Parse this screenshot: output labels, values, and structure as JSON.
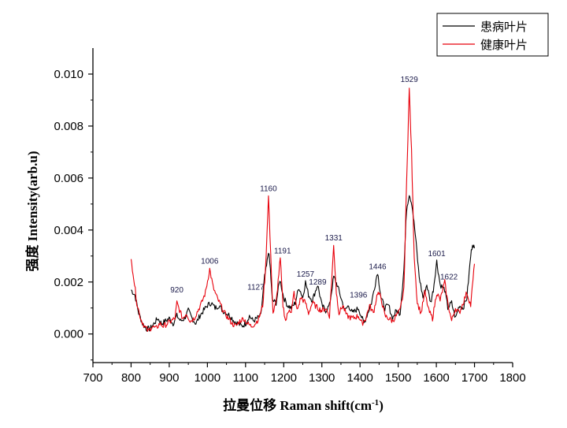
{
  "chart_data": {
    "type": "line",
    "xlabel": "拉曼位移 Raman shift(cm-1)",
    "xlabel_main": "拉曼位移 Raman shift(cm",
    "xlabel_sup": "-1",
    "xlabel_end": ")",
    "ylabel": "强度 Intensity(arb.u)",
    "xlim": [
      700,
      1800
    ],
    "ylim": [
      -0.0011,
      0.011
    ],
    "xticks": [
      "700",
      "800",
      "900",
      "1000",
      "1100",
      "1200",
      "1300",
      "1400",
      "1500",
      "1600",
      "1700",
      "1800"
    ],
    "yticks": [
      "0.000",
      "0.002",
      "0.004",
      "0.006",
      "0.008",
      "0.010"
    ],
    "grid": false,
    "legend_position": "top-right",
    "series": [
      {
        "name": "患病叶片",
        "color": "#000000",
        "points": [
          [
            800,
            0.0017
          ],
          [
            810,
            0.0015
          ],
          [
            820,
            0.0008
          ],
          [
            830,
            0.0004
          ],
          [
            840,
            0.0002
          ],
          [
            850,
            0.0002
          ],
          [
            860,
            0.0004
          ],
          [
            870,
            0.0006
          ],
          [
            880,
            0.0004
          ],
          [
            890,
            0.0005
          ],
          [
            900,
            0.0006
          ],
          [
            910,
            0.0004
          ],
          [
            920,
            0.0007
          ],
          [
            930,
            0.0005
          ],
          [
            940,
            0.0006
          ],
          [
            950,
            0.0009
          ],
          [
            960,
            0.0006
          ],
          [
            970,
            0.0004
          ],
          [
            980,
            0.0007
          ],
          [
            990,
            0.0009
          ],
          [
            1000,
            0.0011
          ],
          [
            1010,
            0.0012
          ],
          [
            1020,
            0.001
          ],
          [
            1030,
            0.0011
          ],
          [
            1040,
            0.0009
          ],
          [
            1050,
            0.0008
          ],
          [
            1060,
            0.0007
          ],
          [
            1070,
            0.0005
          ],
          [
            1080,
            0.0004
          ],
          [
            1090,
            0.0003
          ],
          [
            1100,
            0.0004
          ],
          [
            1110,
            0.0007
          ],
          [
            1120,
            0.0005
          ],
          [
            1130,
            0.0006
          ],
          [
            1140,
            0.0007
          ],
          [
            1150,
            0.0022
          ],
          [
            1155,
            0.0026
          ],
          [
            1160,
            0.0032
          ],
          [
            1165,
            0.0025
          ],
          [
            1170,
            0.0013
          ],
          [
            1180,
            0.0012
          ],
          [
            1190,
            0.0021
          ],
          [
            1200,
            0.0014
          ],
          [
            1210,
            0.0011
          ],
          [
            1220,
            0.001
          ],
          [
            1230,
            0.0012
          ],
          [
            1240,
            0.0018
          ],
          [
            1250,
            0.0014
          ],
          [
            1257,
            0.002
          ],
          [
            1265,
            0.0015
          ],
          [
            1275,
            0.0013
          ],
          [
            1289,
            0.0019
          ],
          [
            1300,
            0.0011
          ],
          [
            1310,
            0.0009
          ],
          [
            1320,
            0.0011
          ],
          [
            1331,
            0.0022
          ],
          [
            1340,
            0.0019
          ],
          [
            1350,
            0.0014
          ],
          [
            1360,
            0.0009
          ],
          [
            1370,
            0.0011
          ],
          [
            1380,
            0.0008
          ],
          [
            1396,
            0.001
          ],
          [
            1410,
            0.0004
          ],
          [
            1420,
            0.0008
          ],
          [
            1430,
            0.0012
          ],
          [
            1446,
            0.0024
          ],
          [
            1455,
            0.0014
          ],
          [
            1465,
            0.001
          ],
          [
            1475,
            0.0011
          ],
          [
            1485,
            0.0006
          ],
          [
            1495,
            0.0009
          ],
          [
            1505,
            0.0008
          ],
          [
            1515,
            0.0025
          ],
          [
            1522,
            0.0048
          ],
          [
            1529,
            0.0054
          ],
          [
            1536,
            0.005
          ],
          [
            1545,
            0.0038
          ],
          [
            1555,
            0.0022
          ],
          [
            1565,
            0.0014
          ],
          [
            1575,
            0.0019
          ],
          [
            1585,
            0.0012
          ],
          [
            1592,
            0.0017
          ],
          [
            1601,
            0.0028
          ],
          [
            1610,
            0.0019
          ],
          [
            1622,
            0.0017
          ],
          [
            1630,
            0.001
          ],
          [
            1640,
            0.0012
          ],
          [
            1650,
            0.0006
          ],
          [
            1660,
            0.0011
          ],
          [
            1670,
            0.001
          ],
          [
            1680,
            0.0014
          ],
          [
            1690,
            0.003
          ],
          [
            1695,
            0.0035
          ],
          [
            1700,
            0.0033
          ]
        ]
      },
      {
        "name": "健康叶片",
        "color": "#e8000b",
        "points": [
          [
            800,
            0.0028
          ],
          [
            805,
            0.0024
          ],
          [
            815,
            0.0012
          ],
          [
            825,
            0.0006
          ],
          [
            835,
            0.0003
          ],
          [
            845,
            0.0001
          ],
          [
            855,
            0.0003
          ],
          [
            865,
            0.0002
          ],
          [
            875,
            0.0004
          ],
          [
            885,
            0.0003
          ],
          [
            895,
            0.0004
          ],
          [
            905,
            0.0005
          ],
          [
            915,
            0.0006
          ],
          [
            920,
            0.0012
          ],
          [
            925,
            0.001
          ],
          [
            935,
            0.0006
          ],
          [
            945,
            0.0008
          ],
          [
            955,
            0.0005
          ],
          [
            965,
            0.0006
          ],
          [
            975,
            0.0009
          ],
          [
            985,
            0.0012
          ],
          [
            995,
            0.0016
          ],
          [
            1006,
            0.0025
          ],
          [
            1015,
            0.0018
          ],
          [
            1025,
            0.0014
          ],
          [
            1035,
            0.0011
          ],
          [
            1045,
            0.0008
          ],
          [
            1055,
            0.0006
          ],
          [
            1065,
            0.0004
          ],
          [
            1075,
            0.0003
          ],
          [
            1085,
            0.0005
          ],
          [
            1095,
            0.0006
          ],
          [
            1105,
            0.0004
          ],
          [
            1115,
            0.0003
          ],
          [
            1125,
            0.0004
          ],
          [
            1135,
            0.0006
          ],
          [
            1145,
            0.0011
          ],
          [
            1152,
            0.0024
          ],
          [
            1160,
            0.0053
          ],
          [
            1166,
            0.003
          ],
          [
            1172,
            0.0008
          ],
          [
            1180,
            0.0012
          ],
          [
            1191,
            0.0029
          ],
          [
            1198,
            0.0011
          ],
          [
            1205,
            0.0005
          ],
          [
            1215,
            0.001
          ],
          [
            1220,
            0.0008
          ],
          [
            1227,
            0.0016
          ],
          [
            1235,
            0.0009
          ],
          [
            1245,
            0.0014
          ],
          [
            1257,
            0.0012
          ],
          [
            1265,
            0.0008
          ],
          [
            1275,
            0.0012
          ],
          [
            1289,
            0.001
          ],
          [
            1300,
            0.0009
          ],
          [
            1310,
            0.001
          ],
          [
            1320,
            0.0007
          ],
          [
            1331,
            0.0034
          ],
          [
            1338,
            0.0016
          ],
          [
            1345,
            0.0008
          ],
          [
            1355,
            0.0011
          ],
          [
            1365,
            0.0007
          ],
          [
            1380,
            0.0006
          ],
          [
            1396,
            0.0007
          ],
          [
            1405,
            0.0004
          ],
          [
            1415,
            0.0006
          ],
          [
            1425,
            0.0011
          ],
          [
            1435,
            0.0008
          ],
          [
            1446,
            0.0016
          ],
          [
            1455,
            0.0014
          ],
          [
            1465,
            0.0007
          ],
          [
            1475,
            0.0006
          ],
          [
            1485,
            0.0005
          ],
          [
            1495,
            0.0007
          ],
          [
            1505,
            0.0009
          ],
          [
            1515,
            0.0017
          ],
          [
            1522,
            0.0058
          ],
          [
            1529,
            0.0094
          ],
          [
            1535,
            0.007
          ],
          [
            1542,
            0.003
          ],
          [
            1550,
            0.0012
          ],
          [
            1560,
            0.0008
          ],
          [
            1570,
            0.0016
          ],
          [
            1580,
            0.0009
          ],
          [
            1590,
            0.0006
          ],
          [
            1601,
            0.0016
          ],
          [
            1610,
            0.0013
          ],
          [
            1622,
            0.002
          ],
          [
            1630,
            0.0012
          ],
          [
            1640,
            0.0005
          ],
          [
            1650,
            0.001
          ],
          [
            1660,
            0.0008
          ],
          [
            1670,
            0.0012
          ],
          [
            1680,
            0.0016
          ],
          [
            1690,
            0.0011
          ],
          [
            1700,
            0.0027
          ]
        ]
      }
    ],
    "annotations": [
      {
        "text": "920",
        "x": 920,
        "y": 0.0016
      },
      {
        "text": "1006",
        "x": 1006,
        "y": 0.0027
      },
      {
        "text": "1160",
        "x": 1160,
        "y": 0.0055
      },
      {
        "text": "1191",
        "x": 1197,
        "y": 0.0031
      },
      {
        "text": "1127",
        "x": 1127,
        "y": 0.0017
      },
      {
        "text": "1257",
        "x": 1257,
        "y": 0.0022
      },
      {
        "text": "1289",
        "x": 1289,
        "y": 0.0019
      },
      {
        "text": "1331",
        "x": 1331,
        "y": 0.0036
      },
      {
        "text": "1396",
        "x": 1396,
        "y": 0.0014
      },
      {
        "text": "1446",
        "x": 1446,
        "y": 0.0025
      },
      {
        "text": "1529",
        "x": 1529,
        "y": 0.0097
      },
      {
        "text": "1601",
        "x": 1601,
        "y": 0.003
      },
      {
        "text": "1622",
        "x": 1633,
        "y": 0.0021
      }
    ]
  }
}
